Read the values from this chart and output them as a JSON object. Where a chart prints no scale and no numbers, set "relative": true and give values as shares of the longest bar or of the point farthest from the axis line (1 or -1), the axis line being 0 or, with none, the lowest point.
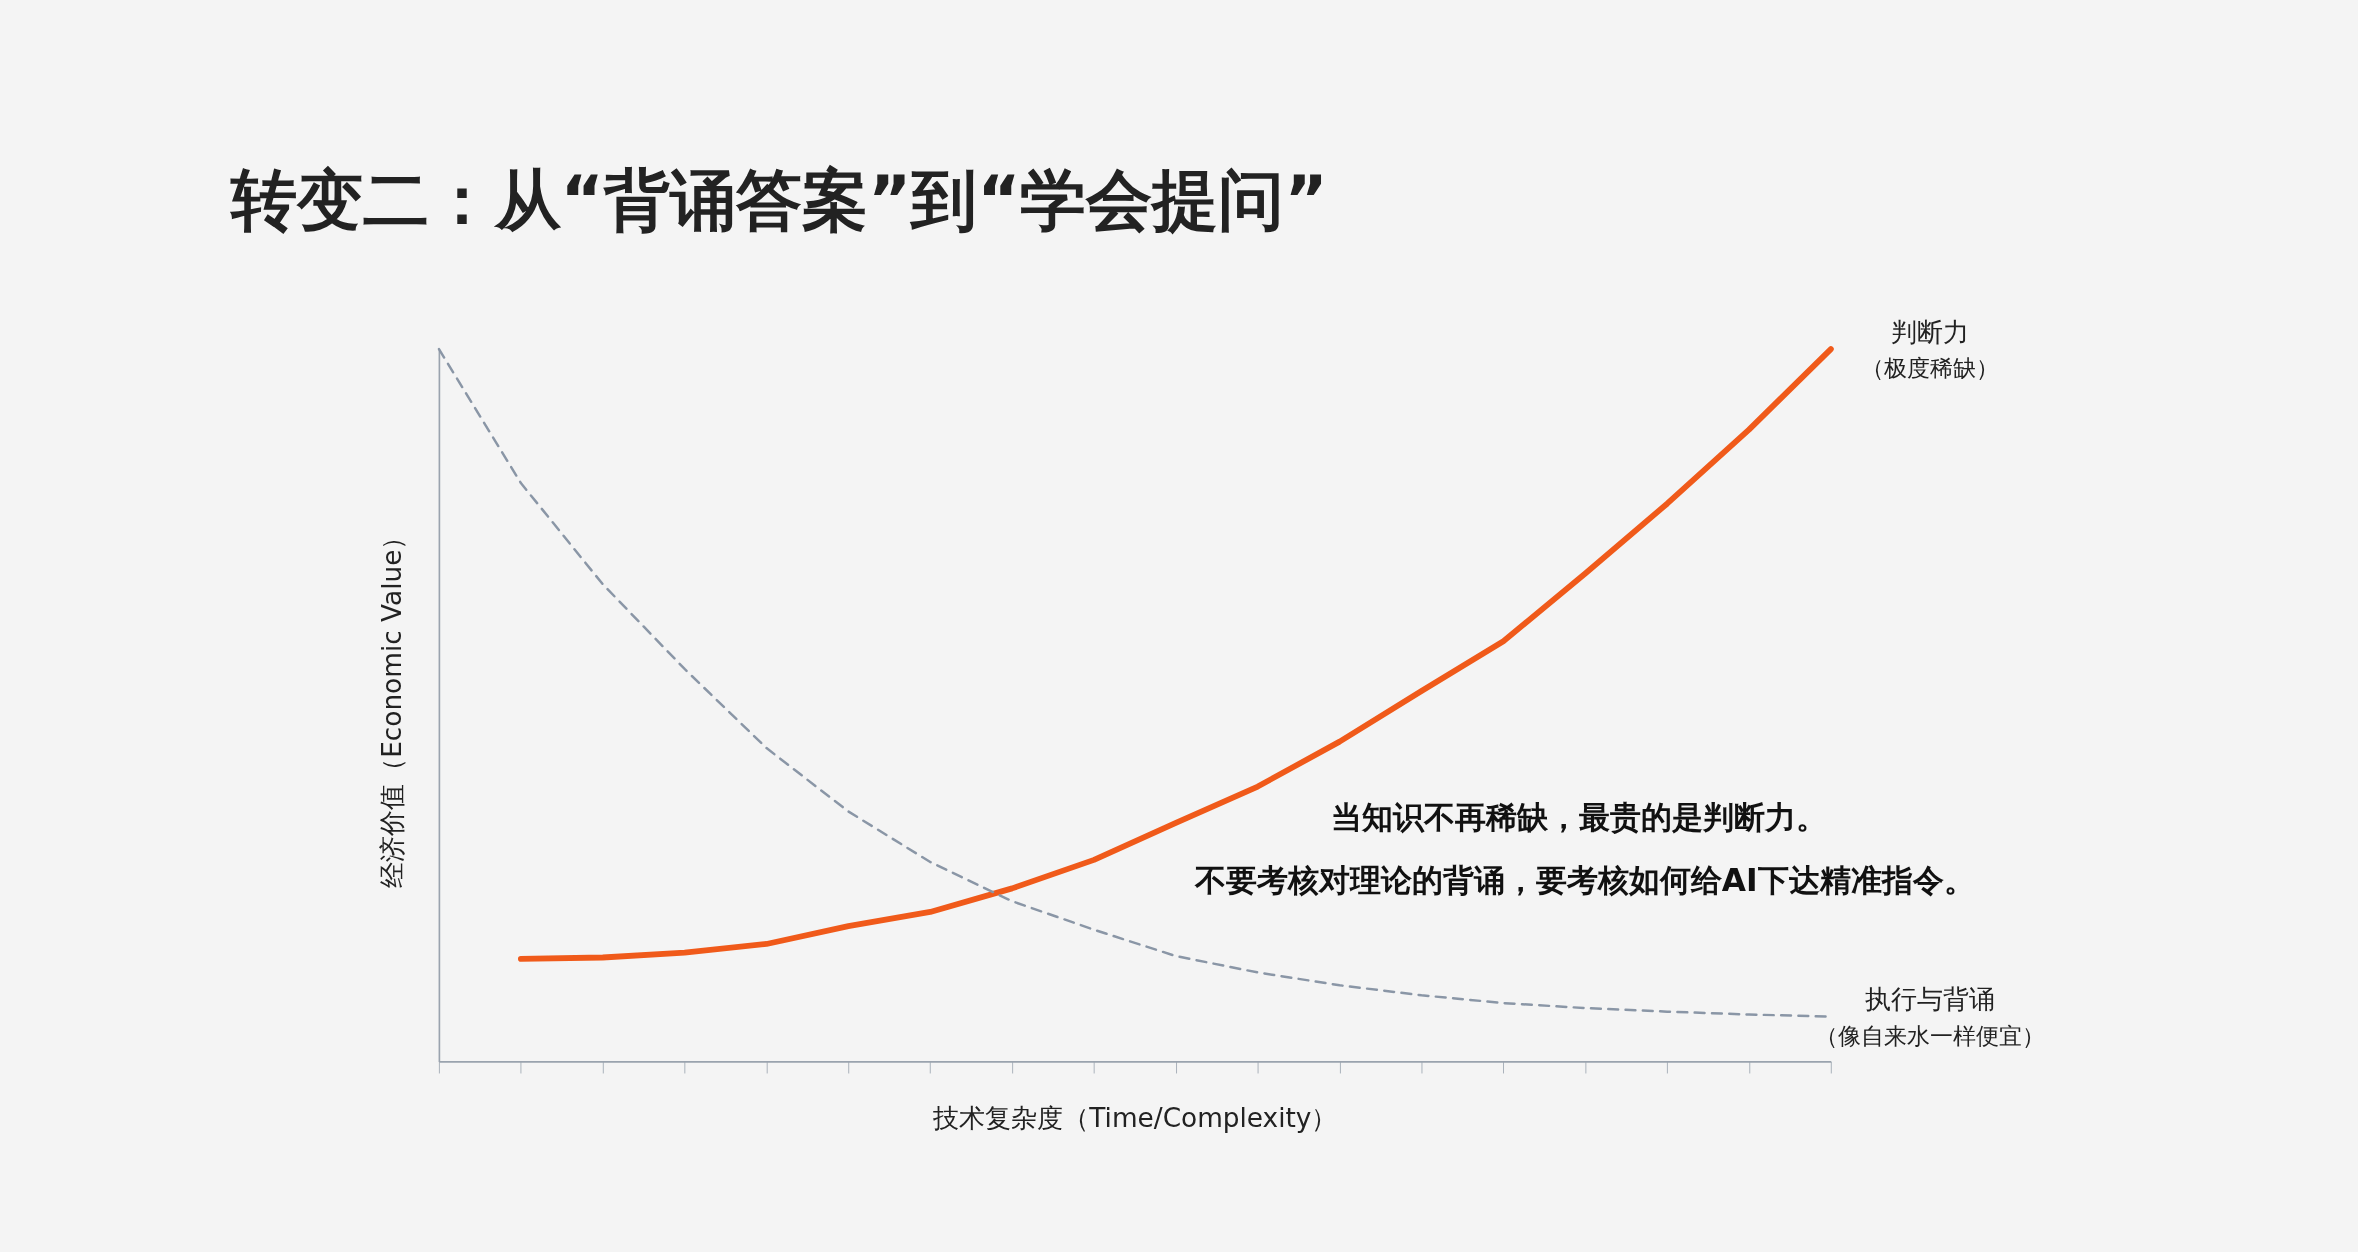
{
  "chart_data": {
    "type": "line",
    "title": "转变二：从“背诵答案”到“学会提问”",
    "xlabel": "技术复杂度（Time/Complexity）",
    "ylabel": "经济价值（Economic Value）",
    "relative": true,
    "categories": [
      null,
      null,
      null,
      null,
      null,
      null,
      null,
      null,
      null,
      null,
      null,
      null,
      null,
      null,
      null,
      null,
      null,
      null
    ],
    "series": [
      {
        "name": "判断力",
        "color": "#f05a1a",
        "line_style": "solid",
        "values": [
          null,
          0.144,
          0.146,
          0.153,
          0.165,
          0.19,
          0.21,
          0.243,
          0.283,
          0.335,
          0.386,
          0.449,
          0.52,
          0.59,
          0.685,
          0.783,
          0.887,
          1
        ]
      },
      {
        "name": "执行与背诵",
        "color": "#8a96a6",
        "line_style": "dashed",
        "values": [
          1,
          0.812,
          0.67,
          0.551,
          0.44,
          0.351,
          0.28,
          0.225,
          0.185,
          0.148,
          0.125,
          0.107,
          0.093,
          0.082,
          0.075,
          0.07,
          0.066,
          0.063
        ]
      }
    ],
    "annotations": [
      "（极度稀缺）",
      "（像自来水一样便宜）",
      "当知识不再稀缺，最贵的是判断力。",
      "不要考核对理论的背诵，要考核如何给AI下达精准指令。"
    ]
  }
}
